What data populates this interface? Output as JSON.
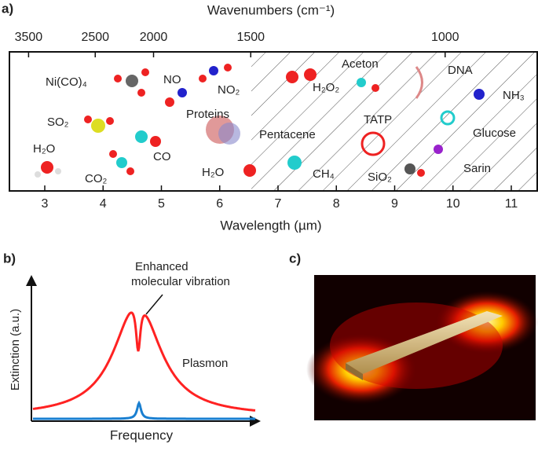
{
  "panel_a": {
    "label": "a)",
    "top_axis_title": "Wavenumbers (cm⁻¹)",
    "top_ticks": [
      3500,
      2500,
      2000,
      1500,
      1000
    ],
    "bottom_axis_title": "Wavelength (µm)",
    "bottom_ticks": [
      3,
      4,
      5,
      6,
      7,
      8,
      9,
      10,
      11
    ],
    "molecules": [
      "Ni(CO)₄",
      "NO",
      "NO₂",
      "SO₂",
      "H₂O",
      "CO₂",
      "CO",
      "Proteins",
      "H₂O",
      "Pentacene",
      "CH₄",
      "H₂O₂",
      "Aceton",
      "TATP",
      "SiO₂",
      "DNA",
      "NH₃",
      "Glucose",
      "Sarin"
    ]
  },
  "panel_b": {
    "label": "b)",
    "annotation_line1": "Enhanced",
    "annotation_line2": "molecular vibration",
    "curve_label": "Plasmon",
    "y_axis_title": "Extinction (a.u.)",
    "x_axis_title": "Frequency"
  },
  "panel_c": {
    "label": "c)"
  }
}
